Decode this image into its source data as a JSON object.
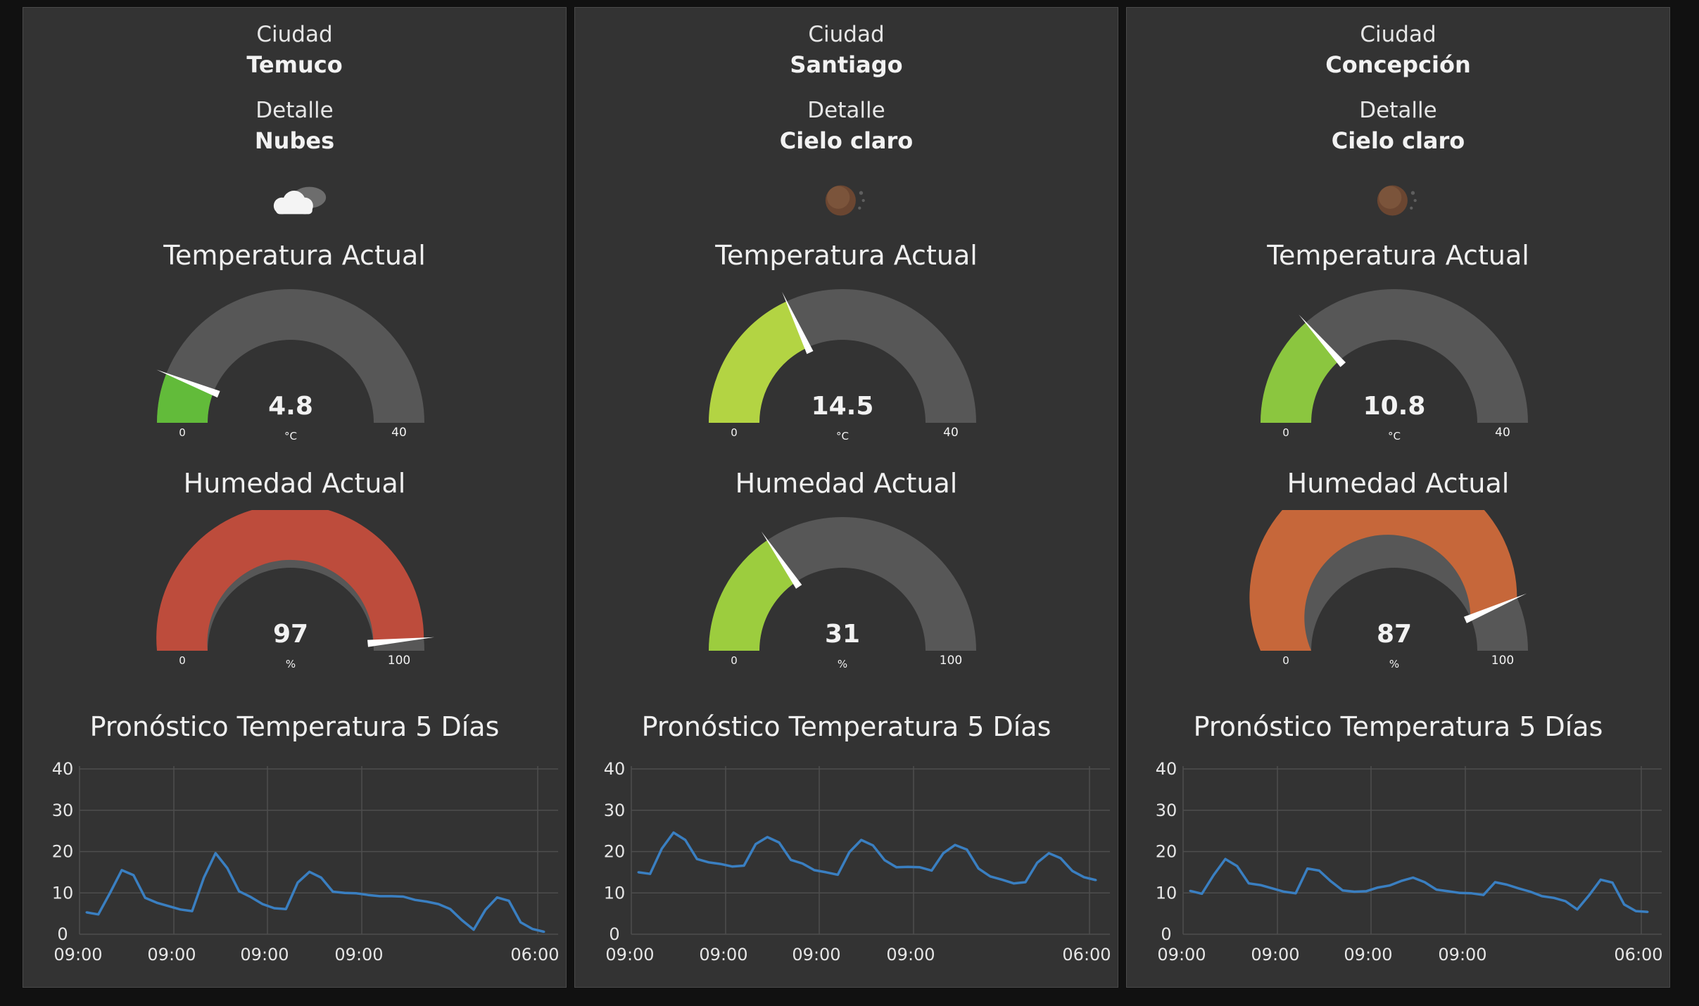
{
  "cities": [
    {
      "city_label": "Ciudad",
      "city": "Temuco",
      "detail_label": "Detalle",
      "detail": "Nubes",
      "weather_icon": "clouds-icon",
      "temp_title": "Temperatura Actual",
      "temp": {
        "value": 4.8,
        "display": "4.8",
        "min": 0,
        "max": 40,
        "min_label": "0",
        "max_label": "40",
        "unit": "°C",
        "color": "#62bb3a"
      },
      "hum_title": "Humedad Actual",
      "hum": {
        "value": 97,
        "display": "97",
        "min": 0,
        "max": 100,
        "min_label": "0",
        "max_label": "100",
        "unit": "%",
        "color": "#bd4c3c"
      },
      "forecast_title": "Pronóstico Temperatura 5 Días",
      "chart_data": {
        "type": "line",
        "y_ticks": [
          "0",
          "10",
          "20",
          "30",
          "40"
        ],
        "ylim": [
          0,
          40
        ],
        "x_tick_labels": [
          "09:00",
          "09:00",
          "09:00",
          "09:00",
          "06:00"
        ],
        "series": [
          {
            "values": [
              5.3,
              4.8,
              10.0,
              15.5,
              14.3,
              8.8,
              7.6,
              6.8,
              6.0,
              5.6,
              13.7,
              19.6,
              16.0,
              10.4,
              9.0,
              7.3,
              6.3,
              6.1,
              12.5,
              15.1,
              13.7,
              10.3,
              10.0,
              9.9,
              9.5,
              9.2,
              9.2,
              9.1,
              8.3,
              7.9,
              7.3,
              6.1,
              3.4,
              1.1,
              5.9,
              8.9,
              8.1,
              2.9,
              1.3,
              0.6
            ]
          }
        ],
        "line_color": "#3a7fc1"
      }
    },
    {
      "city_label": "Ciudad",
      "city": "Santiago",
      "detail_label": "Detalle",
      "detail": "Cielo claro",
      "weather_icon": "moon-icon",
      "temp_title": "Temperatura Actual",
      "temp": {
        "value": 14.5,
        "display": "14.5",
        "min": 0,
        "max": 40,
        "min_label": "0",
        "max_label": "40",
        "unit": "°C",
        "color": "#b3d443"
      },
      "hum_title": "Humedad Actual",
      "hum": {
        "value": 31,
        "display": "31",
        "min": 0,
        "max": 100,
        "min_label": "0",
        "max_label": "100",
        "unit": "%",
        "color": "#9ccd3e"
      },
      "forecast_title": "Pronóstico Temperatura 5 Días",
      "chart_data": {
        "type": "line",
        "y_ticks": [
          "0",
          "10",
          "20",
          "30",
          "40"
        ],
        "ylim": [
          0,
          40
        ],
        "x_tick_labels": [
          "09:00",
          "09:00",
          "09:00",
          "09:00",
          "06:00"
        ],
        "series": [
          {
            "values": [
              15.0,
              14.6,
              20.7,
              24.6,
              22.8,
              18.2,
              17.4,
              17.0,
              16.4,
              16.6,
              21.8,
              23.5,
              22.2,
              18.0,
              17.1,
              15.5,
              15.0,
              14.4,
              19.9,
              22.8,
              21.5,
              17.9,
              16.2,
              16.3,
              16.2,
              15.4,
              19.6,
              21.6,
              20.5,
              15.9,
              14.0,
              13.2,
              12.3,
              12.6,
              17.3,
              19.6,
              18.4,
              15.3,
              13.8,
              13.1
            ]
          }
        ],
        "line_color": "#3a7fc1"
      }
    },
    {
      "city_label": "Ciudad",
      "city": "Concepción",
      "detail_label": "Detalle",
      "detail": "Cielo claro",
      "weather_icon": "moon-icon",
      "temp_title": "Temperatura Actual",
      "temp": {
        "value": 10.8,
        "display": "10.8",
        "min": 0,
        "max": 40,
        "min_label": "0",
        "max_label": "40",
        "unit": "°C",
        "color": "#8bc63f"
      },
      "hum_title": "Humedad Actual",
      "hum": {
        "value": 87,
        "display": "87",
        "min": 0,
        "max": 100,
        "min_label": "0",
        "max_label": "100",
        "unit": "%",
        "color": "#c6673a"
      },
      "forecast_title": "Pronóstico Temperatura 5 Días",
      "chart_data": {
        "type": "line",
        "y_ticks": [
          "0",
          "10",
          "20",
          "30",
          "40"
        ],
        "ylim": [
          0,
          40
        ],
        "x_tick_labels": [
          "09:00",
          "09:00",
          "09:00",
          "09:00",
          "06:00"
        ],
        "series": [
          {
            "values": [
              10.5,
              9.8,
              14.3,
              18.2,
              16.5,
              12.3,
              11.9,
              11.1,
              10.3,
              9.9,
              15.9,
              15.4,
              12.8,
              10.6,
              10.3,
              10.4,
              11.3,
              11.8,
              12.9,
              13.7,
              12.6,
              10.8,
              10.4,
              10.0,
              9.9,
              9.5,
              12.6,
              12.0,
              11.1,
              10.3,
              9.2,
              8.8,
              8.0,
              6.0,
              9.4,
              13.2,
              12.5,
              7.2,
              5.6,
              5.4
            ]
          }
        ],
        "line_color": "#3a7fc1"
      }
    }
  ]
}
